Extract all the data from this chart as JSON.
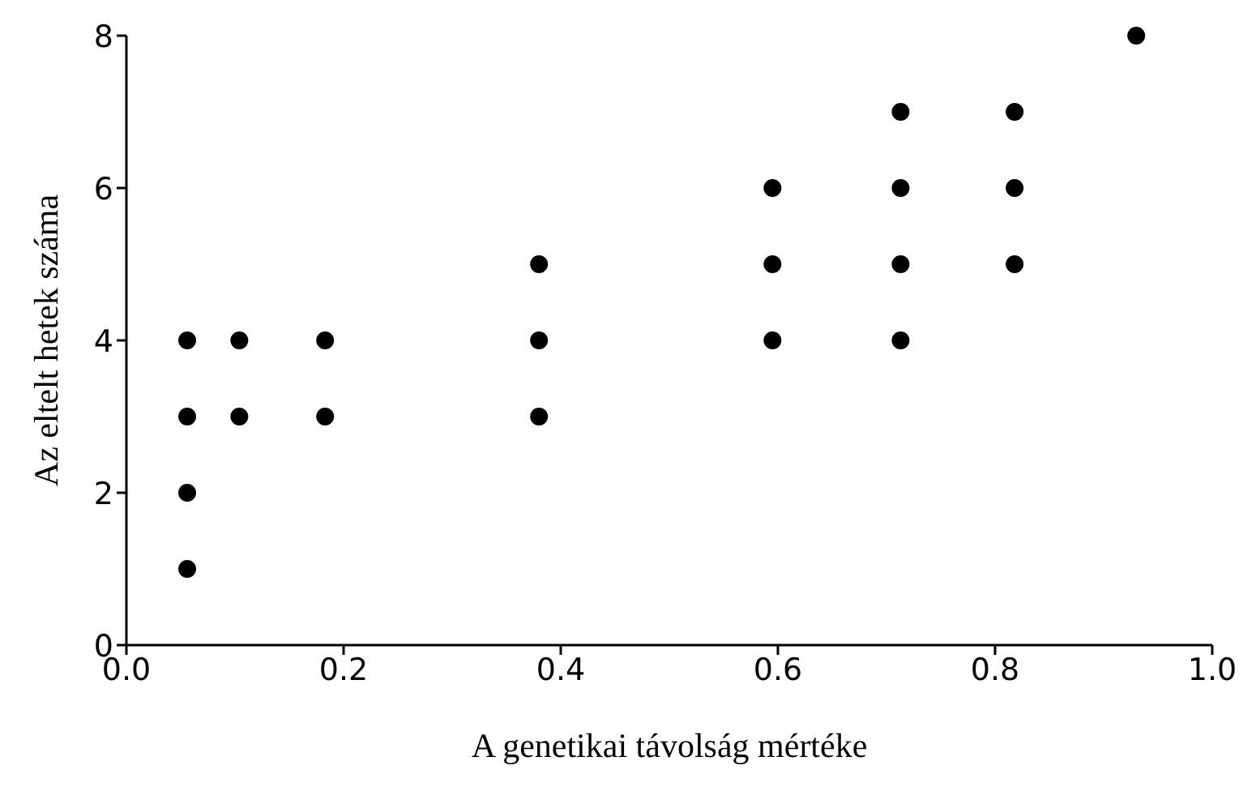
{
  "chart_data": {
    "type": "scatter",
    "xlabel": "A genetikai távolság mértéke",
    "ylabel": "Az eltelt hetek száma",
    "x": [
      0.056,
      0.056,
      0.056,
      0.056,
      0.104,
      0.104,
      0.183,
      0.183,
      0.38,
      0.38,
      0.38,
      0.595,
      0.595,
      0.595,
      0.713,
      0.713,
      0.713,
      0.713,
      0.818,
      0.818,
      0.818,
      0.93
    ],
    "series": [
      {
        "color": "#000000",
        "values": [
          1,
          2,
          3,
          4,
          3,
          4,
          3,
          4,
          3,
          4,
          5,
          4,
          5,
          6,
          4,
          5,
          6,
          7,
          5,
          6,
          7,
          8
        ]
      }
    ],
    "xlim": [
      0,
      1
    ],
    "ylim": [
      0,
      8
    ],
    "xticks": [
      {
        "value": 0,
        "label": "0.0"
      },
      {
        "value": 0.2,
        "label": "0.2"
      },
      {
        "value": 0.4,
        "label": "0.4"
      },
      {
        "value": 0.6,
        "label": "0.6"
      },
      {
        "value": 0.8,
        "label": "0.8"
      },
      {
        "value": 1,
        "label": "1.0"
      }
    ],
    "yticks": [
      0,
      2,
      4,
      6,
      8
    ],
    "grid": false,
    "marker": "circle",
    "legend": false
  }
}
